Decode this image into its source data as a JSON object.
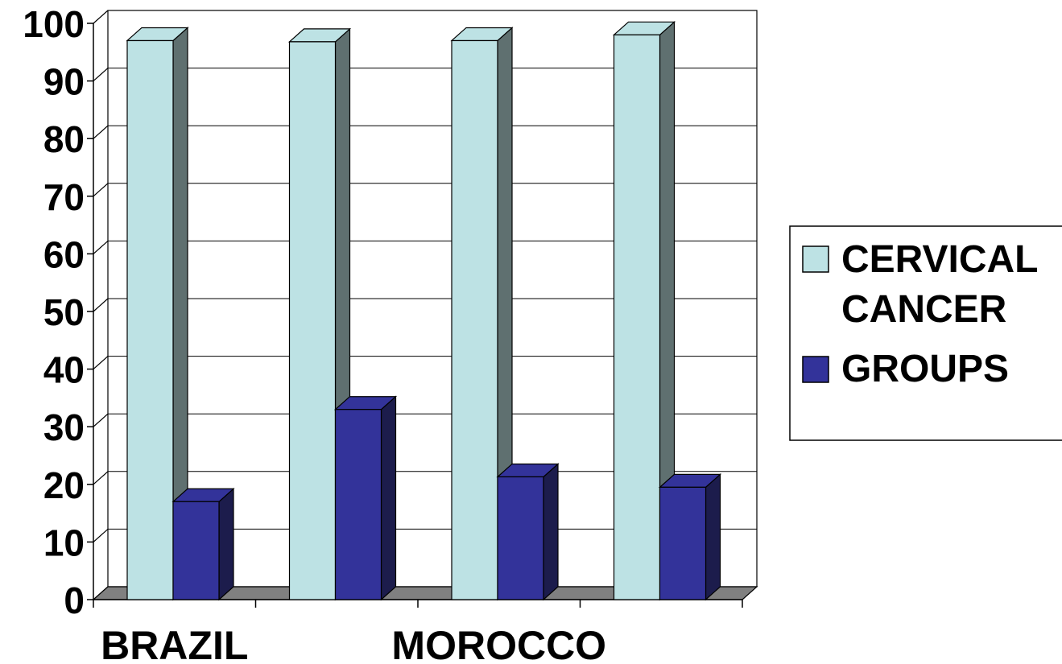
{
  "chart_data": {
    "type": "bar",
    "categories": [
      "BRAZIL",
      "",
      "MOROCCO",
      ""
    ],
    "series": [
      {
        "name": "CERVICAL CANCER",
        "values": [
          97,
          96.8,
          97,
          98
        ]
      },
      {
        "name": "GROUPS",
        "values": [
          17,
          33,
          21.3,
          19.5
        ]
      }
    ],
    "ylim": [
      0,
      100
    ],
    "yticks": [
      0,
      10,
      20,
      30,
      40,
      50,
      60,
      70,
      80,
      90,
      100
    ],
    "grid": true,
    "legend_position": "right",
    "legend_lines": [
      [
        "CERVICAL",
        "CANCER"
      ],
      [
        "GROUPS"
      ]
    ],
    "colors": {
      "series1_front": "#bde2e4",
      "series1_side": "#5f7070",
      "series2_front": "#33339a",
      "series2_side": "#1c1c4c",
      "floor": "#808080"
    }
  }
}
